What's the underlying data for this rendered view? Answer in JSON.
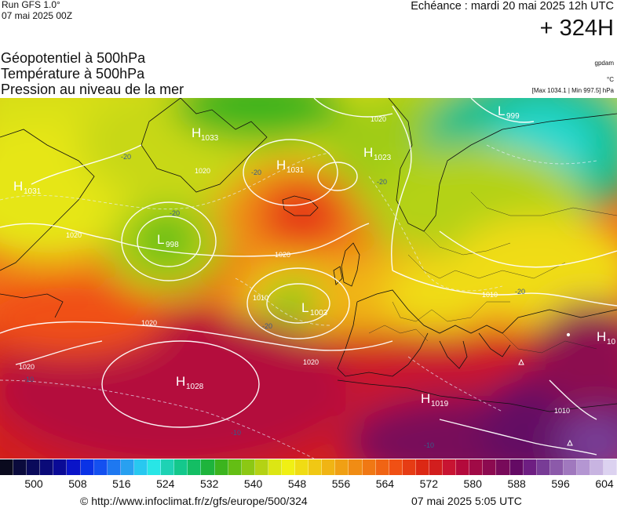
{
  "header": {
    "run_label": "Run GFS 1.0°",
    "run_date": "07 mai 2025 00Z",
    "valid_time": "Echéance : mardi 20 mai 2025 12h UTC",
    "lead_time": "+ 324H"
  },
  "titles": {
    "line1": "Géopotentiel à 500hPa",
    "line2": "Température à 500hPa",
    "line3": "Pression au niveau de la mer"
  },
  "units": {
    "geopotential": "gpdam",
    "temperature": "°C",
    "pressure_range": "[Max 1034.1 | Min 997.5] hPa"
  },
  "pressure_centers": [
    {
      "type": "H",
      "value": "1033"
    },
    {
      "type": "H",
      "value": "1031"
    },
    {
      "type": "H",
      "value": "1031"
    },
    {
      "type": "H",
      "value": "1023"
    },
    {
      "type": "L",
      "value": "998"
    },
    {
      "type": "L",
      "value": "1003"
    },
    {
      "type": "H",
      "value": "1028"
    },
    {
      "type": "H",
      "value": "1019"
    },
    {
      "type": "L",
      "value": "999"
    },
    {
      "type": "H",
      "value": "10"
    }
  ],
  "isobar_labels": [
    "1020",
    "1020",
    "1020",
    "1020",
    "1020",
    "1020",
    "1020",
    "1010",
    "1010",
    "1010"
  ],
  "isotherm_labels": [
    "-20",
    "-20",
    "-20",
    "-20",
    "-20",
    "-10",
    "-10",
    "-10",
    "-20"
  ],
  "colorbar": {
    "colors": [
      "#0a0a1e",
      "#0a0a3c",
      "#0a0a5a",
      "#0a0a78",
      "#0a0a96",
      "#0a14c8",
      "#0a32e6",
      "#1450f0",
      "#1e78f0",
      "#28a0f0",
      "#28c8f0",
      "#28e6e6",
      "#1ed2b4",
      "#14c88c",
      "#14be64",
      "#1eb43c",
      "#3cb41e",
      "#64be14",
      "#8cc814",
      "#b4d214",
      "#dce614",
      "#f0f014",
      "#f0dc14",
      "#f0c814",
      "#f0b414",
      "#f0a014",
      "#f08c14",
      "#f07814",
      "#f06414",
      "#f05014",
      "#e63c14",
      "#dc2814",
      "#d21e1e",
      "#c81432",
      "#b40a3c",
      "#a00a46",
      "#8c0a50",
      "#780a5a",
      "#640a64",
      "#6e1e82",
      "#783c96",
      "#8c5aaa",
      "#a078be",
      "#b496d2",
      "#c8b4e1",
      "#dcd2f0"
    ],
    "ticks": [
      "500",
      "508",
      "516",
      "524",
      "532",
      "540",
      "548",
      "556",
      "564",
      "572",
      "580",
      "588",
      "596",
      "604"
    ]
  },
  "footer": {
    "url": "© http://www.infoclimat.fr/z/gfs/europe/500/324",
    "date": "07 mai 2025  5:05 UTC"
  }
}
